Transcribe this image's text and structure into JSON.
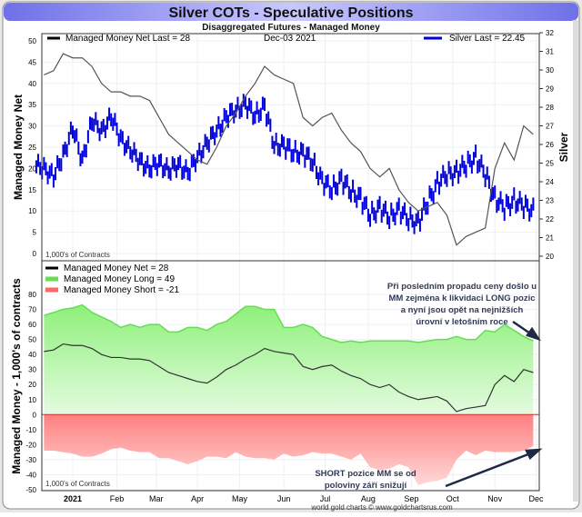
{
  "title": "Silver COTs - Speculative Positions",
  "subtitle": "Disaggregated Futures - Managed Money",
  "footer": "world gold charts © www.goldchartsrus.com",
  "colors": {
    "net": "#000000",
    "silver": "#0000dd",
    "long": "#66dd55",
    "short": "#ff6666",
    "title_bar": "#8c8cf0"
  },
  "chart_data": [
    {
      "type": "line",
      "panel": "top",
      "date_label": "Dec-03  2021",
      "legend": {
        "net": "Managed Money Net   Last = 28",
        "silver": "Silver Last = 22.45"
      },
      "ylabel": "Managed Money Net",
      "ylabel_right": "Silver",
      "units_note": "1,000's of Contracts",
      "ylim": [
        0,
        50
      ],
      "ylim_right": [
        20,
        32
      ],
      "yticks": [
        0,
        5,
        10,
        15,
        20,
        25,
        30,
        35,
        40,
        45,
        50
      ],
      "yticks_right": [
        20,
        21,
        22,
        23,
        24,
        25,
        26,
        27,
        28,
        29,
        30,
        31,
        32
      ],
      "x_weeks": [
        -3,
        -2,
        -1,
        0,
        1,
        2,
        3,
        4,
        5,
        6,
        7,
        8,
        9,
        10,
        11,
        12,
        13,
        14,
        15,
        16,
        17,
        18,
        19,
        20,
        21,
        22,
        23,
        24,
        25,
        26,
        27,
        28,
        29,
        30,
        31,
        32,
        33,
        34,
        35,
        36,
        37,
        38,
        39,
        40,
        41,
        42,
        43,
        44,
        45,
        46,
        47,
        48
      ],
      "net": [
        42,
        43,
        47,
        46,
        46,
        44,
        40,
        38,
        38,
        37,
        37,
        36,
        32,
        28,
        26,
        24,
        22,
        21,
        25,
        30,
        33,
        37,
        40,
        44,
        42,
        41,
        40,
        32,
        30,
        32,
        33,
        29,
        26,
        24,
        20,
        18,
        20,
        15,
        12,
        10,
        11,
        12,
        9,
        2,
        4,
        5,
        6,
        20,
        26,
        22,
        30,
        28
      ],
      "silver": [
        24.8,
        24.2,
        25.5,
        26.8,
        25.2,
        27.2,
        26.8,
        27.4,
        26.4,
        25.6,
        25.2,
        24.6,
        25.1,
        24.5,
        25.0,
        24.4,
        25.4,
        26.0,
        26.8,
        27.4,
        27.9,
        28.1,
        27.6,
        28.0,
        26.0,
        25.9,
        25.6,
        25.5,
        25.1,
        24.0,
        23.6,
        24.1,
        23.5,
        23.1,
        22.2,
        22.6,
        22.1,
        22.5,
        22.0,
        21.8,
        22.9,
        23.9,
        24.4,
        24.5,
        24.9,
        25.3,
        24.4,
        23.1,
        22.6,
        23.0,
        22.7,
        22.45
      ]
    },
    {
      "type": "area",
      "panel": "bottom",
      "legend": [
        "Managed Money Net     = 28",
        "Managed Money Long    = 49",
        "Managed Money Short  = -21"
      ],
      "ylabel": "Managed Money - 1,000's of contracts",
      "units_note": "1,000's of Contracts",
      "ylim": [
        -50,
        80
      ],
      "yticks": [
        -50,
        -40,
        -30,
        -20,
        -10,
        0,
        10,
        20,
        30,
        40,
        50,
        60,
        70,
        80
      ],
      "x_weeks": [
        -3,
        -2,
        -1,
        0,
        1,
        2,
        3,
        4,
        5,
        6,
        7,
        8,
        9,
        10,
        11,
        12,
        13,
        14,
        15,
        16,
        17,
        18,
        19,
        20,
        21,
        22,
        23,
        24,
        25,
        26,
        27,
        28,
        29,
        30,
        31,
        32,
        33,
        34,
        35,
        36,
        37,
        38,
        39,
        40,
        41,
        42,
        43,
        44,
        45,
        46,
        47,
        48
      ],
      "long": [
        66,
        68,
        70,
        71,
        73,
        68,
        65,
        62,
        58,
        60,
        58,
        60,
        60,
        55,
        55,
        58,
        58,
        56,
        60,
        62,
        67,
        72,
        72,
        70,
        70,
        58,
        58,
        60,
        58,
        52,
        50,
        48,
        49,
        48,
        49,
        49,
        49,
        49,
        49,
        48,
        49,
        50,
        50,
        52,
        50,
        50,
        56,
        55,
        60,
        56,
        52,
        49
      ],
      "short": [
        -24,
        -24,
        -25,
        -26,
        -28,
        -28,
        -26,
        -23,
        -22,
        -24,
        -25,
        -25,
        -29,
        -29,
        -31,
        -33,
        -31,
        -28,
        -28,
        -29,
        -25,
        -28,
        -29,
        -29,
        -30,
        -26,
        -28,
        -27,
        -25,
        -26,
        -26,
        -28,
        -30,
        -26,
        -35,
        -37,
        -36,
        -33,
        -35,
        -47,
        -45,
        -44,
        -42,
        -30,
        -24,
        -27,
        -24,
        -25,
        -25,
        -25,
        -24,
        -21
      ],
      "annotations": {
        "long_note": [
          "Při posledním propadu ceny došlo u",
          "MM zejména k likvidaci LONG pozic",
          "a nyní jsou opět na nejnižších",
          "úrovní v letošním roce"
        ],
        "short_note": [
          "SHORT pozice MM se od",
          "poloviny září snižují"
        ]
      }
    }
  ],
  "x_axis": {
    "labels": [
      "2021",
      "Feb",
      "Mar",
      "Apr",
      "May",
      "Jun",
      "Jul",
      "Aug",
      "Sep",
      "Oct",
      "Nov",
      "Dec"
    ],
    "weeks": [
      0,
      4.6,
      8.7,
      13,
      17.4,
      22,
      26.3,
      30.8,
      35.3,
      39.6,
      44,
      48.3
    ]
  }
}
